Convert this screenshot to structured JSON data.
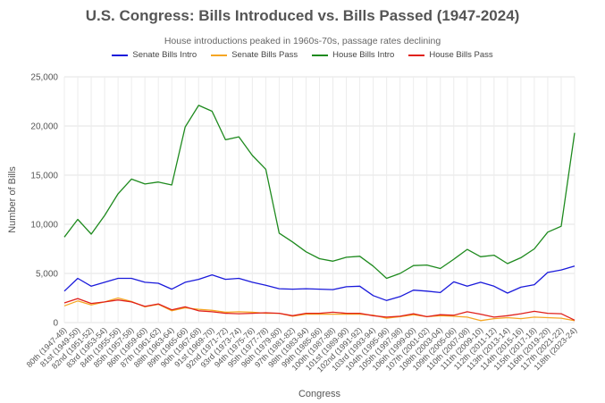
{
  "chart_data": {
    "type": "line",
    "title": "U.S. Congress: Bills Introduced vs. Bills Passed (1947-2024)",
    "subtitle": "House introductions peaked in 1960s-70s, passage rates declining",
    "xlabel": "Congress",
    "ylabel": "Number of Bills",
    "ylim": [
      0,
      25000
    ],
    "yticks": [
      "0",
      "5,000",
      "10,000",
      "15,000",
      "20,000",
      "25,000"
    ],
    "grid": true,
    "legend_position": "top-center",
    "categories": [
      "80th (1947-48)",
      "81st (1949-50)",
      "82nd (1951-52)",
      "83rd (1953-54)",
      "84th (1955-56)",
      "85th (1957-58)",
      "86th (1959-60)",
      "87th (1961-62)",
      "88th (1963-64)",
      "89th (1965-66)",
      "90th (1967-68)",
      "91st (1969-70)",
      "92nd (1971-72)",
      "93rd (1973-74)",
      "94th (1975-76)",
      "95th (1977-78)",
      "96th (1979-80)",
      "97th (1981-82)",
      "98th (1983-84)",
      "99th (1985-86)",
      "100th (1987-88)",
      "101st (1989-90)",
      "102nd (1991-92)",
      "103rd (1993-94)",
      "104th (1995-96)",
      "105th (1997-98)",
      "106th (1999-00)",
      "107th (2001-02)",
      "108th (2003-04)",
      "109th (2005-06)",
      "110th (2007-08)",
      "111th (2009-10)",
      "112th (2011-12)",
      "113th (2013-14)",
      "114th (2015-16)",
      "115th (2017-18)",
      "116th (2019-20)",
      "117th (2021-22)",
      "118th (2023-24)"
    ],
    "series": [
      {
        "name": "Senate Bills Intro",
        "color": "#1a1adb",
        "values": [
          3200,
          4500,
          3700,
          4100,
          4500,
          4500,
          4100,
          4000,
          3400,
          4100,
          4400,
          4850,
          4400,
          4500,
          4100,
          3800,
          3450,
          3400,
          3450,
          3400,
          3350,
          3650,
          3700,
          2750,
          2250,
          2650,
          3300,
          3200,
          3050,
          4150,
          3700,
          4100,
          3700,
          3000,
          3600,
          3850,
          5100,
          5350,
          5750
        ]
      },
      {
        "name": "Senate Bills Pass",
        "color": "#f5a623",
        "values": [
          1700,
          2200,
          1800,
          2100,
          2500,
          2150,
          1600,
          1850,
          1200,
          1500,
          1350,
          1250,
          1050,
          1100,
          1050,
          950,
          950,
          650,
          850,
          850,
          850,
          850,
          850,
          750,
          450,
          600,
          800,
          600,
          700,
          650,
          550,
          200,
          400,
          500,
          400,
          550,
          500,
          450,
          200
        ]
      },
      {
        "name": "House Bills Intro",
        "color": "#1e8a1e",
        "values": [
          8700,
          10500,
          9000,
          10900,
          13100,
          14600,
          14100,
          14300,
          14000,
          19900,
          22100,
          21500,
          18600,
          18900,
          17000,
          15600,
          9100,
          8200,
          7200,
          6500,
          6250,
          6650,
          6750,
          5750,
          4500,
          5000,
          5800,
          5850,
          5500,
          6450,
          7450,
          6700,
          6850,
          6000,
          6600,
          7500,
          9200,
          9800,
          19300
        ]
      },
      {
        "name": "House Bills Pass",
        "color": "#e0211b",
        "values": [
          2000,
          2450,
          1950,
          2100,
          2300,
          2100,
          1650,
          1900,
          1300,
          1600,
          1200,
          1100,
          950,
          900,
          950,
          1000,
          950,
          700,
          950,
          950,
          1050,
          950,
          950,
          700,
          550,
          650,
          900,
          600,
          800,
          750,
          1100,
          850,
          550,
          700,
          900,
          1150,
          950,
          900,
          250
        ]
      }
    ]
  }
}
